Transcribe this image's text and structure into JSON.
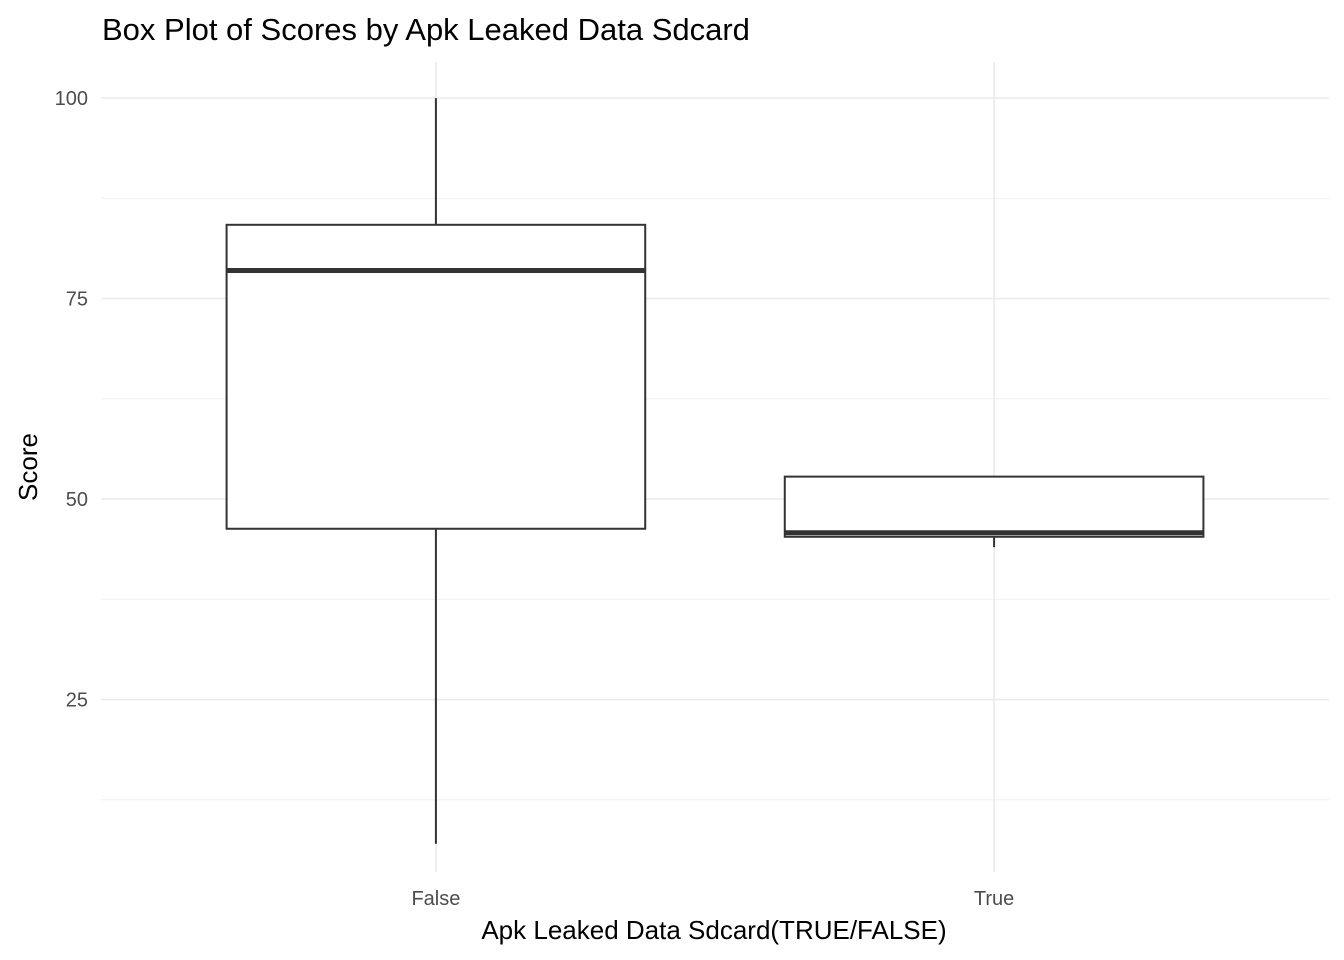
{
  "chart_data": {
    "type": "box",
    "title": "Box Plot of Scores by Apk Leaked Data Sdcard",
    "xlabel": "Apk Leaked Data Sdcard(TRUE/FALSE)",
    "ylabel": "Score",
    "categories": [
      "False",
      "True"
    ],
    "yticks": [
      25,
      50,
      75,
      100
    ],
    "ylim": [
      3.5,
      104.5
    ],
    "grid": true,
    "boxes": [
      {
        "category": "False",
        "min": 7,
        "q1": 46.3,
        "median": 78.5,
        "q3": 84.2,
        "max": 100
      },
      {
        "category": "True",
        "min": 44,
        "q1": 45.3,
        "median": 45.8,
        "q3": 52.8,
        "max": 52.8
      }
    ],
    "colors": {
      "box_fill": "#ffffff",
      "box_stroke": "#333333",
      "grid": "#ebebeb",
      "tick_text": "#4d4d4d"
    }
  }
}
